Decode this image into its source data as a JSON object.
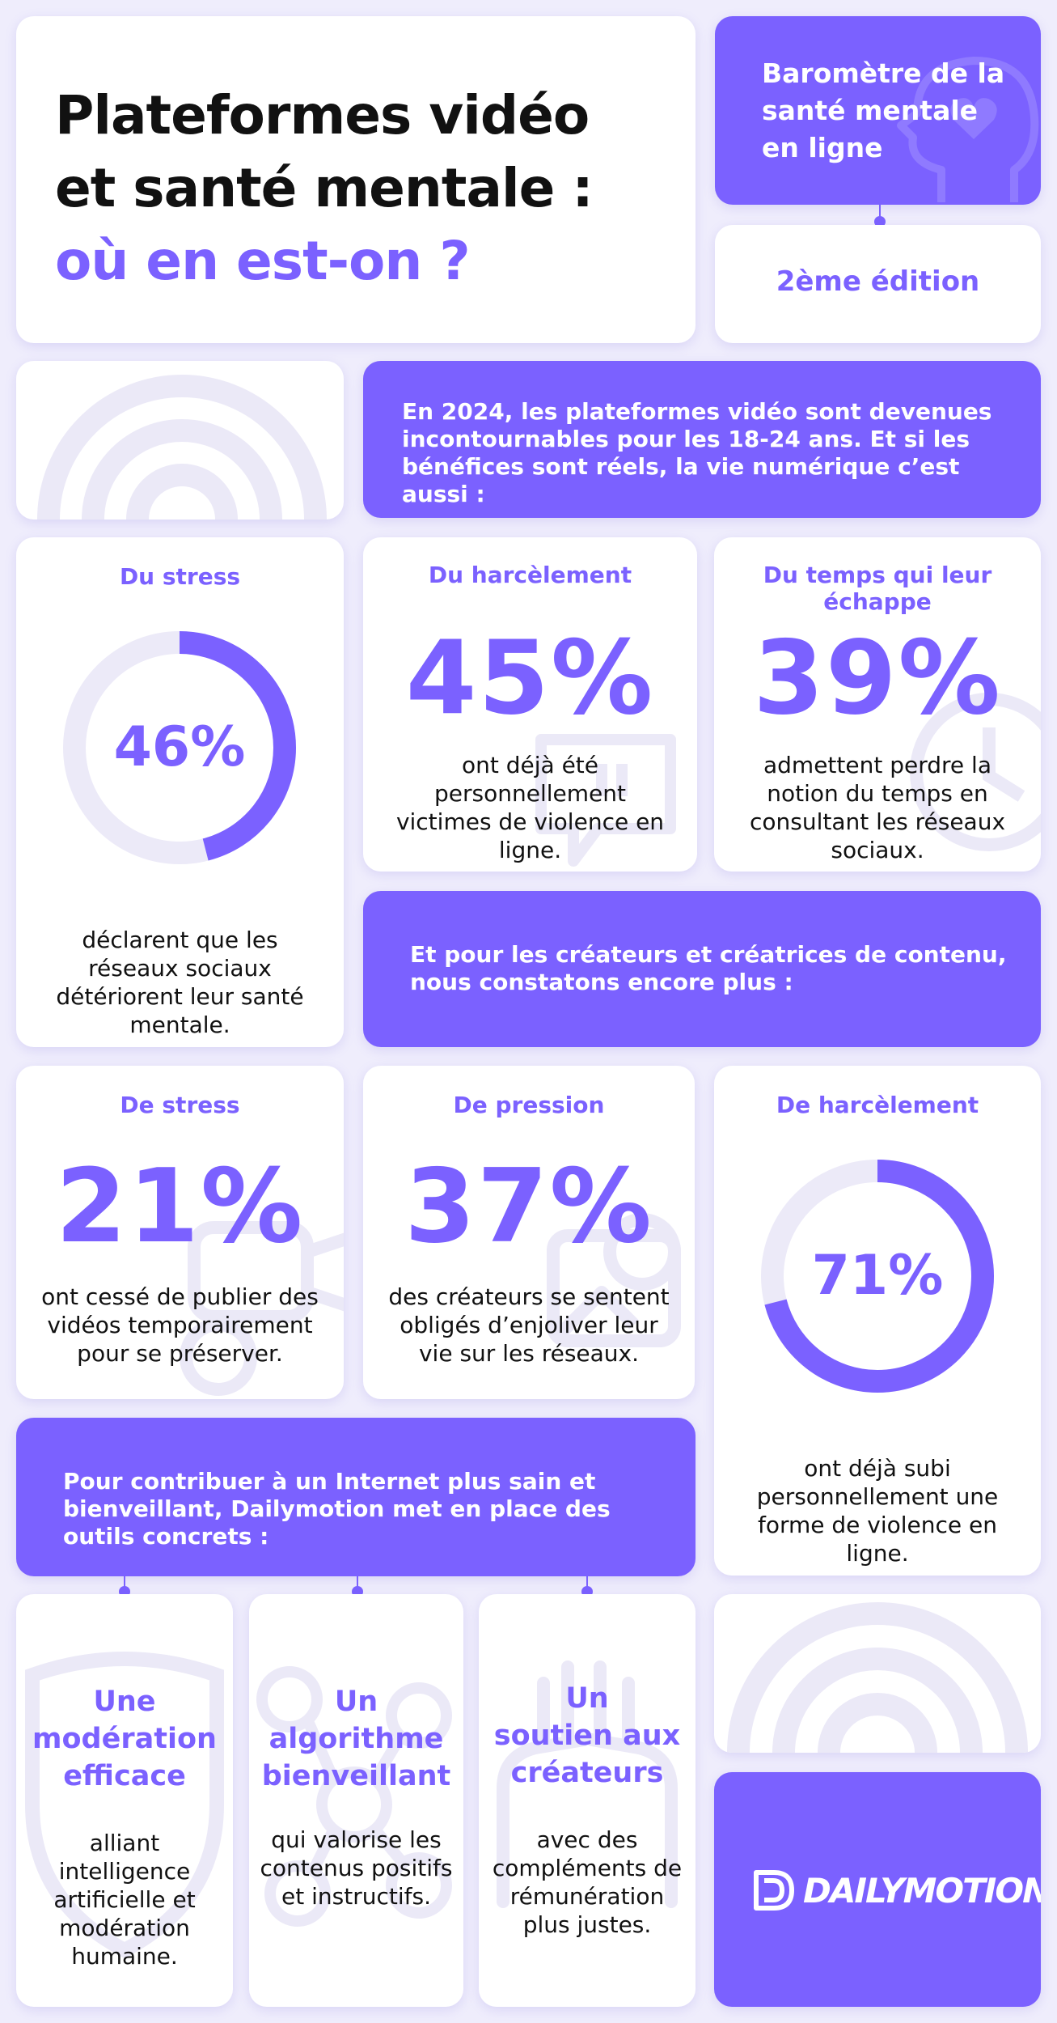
{
  "colors": {
    "accent": "#7b61ff",
    "background": "#efedfc",
    "card": "#ffffff",
    "ring_track": "#eceaf8",
    "deco": "#ebe9f7"
  },
  "header": {
    "title_line1": "Plateformes vidéo",
    "title_line2": "et santé mentale :",
    "title_line3": "où en est-on ?"
  },
  "barometer": {
    "line1": "Baromètre de la",
    "line2": "santé mentale",
    "line3": "en ligne",
    "icon": "head-heart-icon"
  },
  "edition": "2ème édition",
  "intro": "En 2024, les plateformes vidéo sont devenues incontournables pour les 18-24 ans. Et si les bénéfices sont réels, la vie numérique c’est aussi :",
  "stats_youth": [
    {
      "label": "Du stress",
      "value": "46%",
      "percent": 46,
      "text": "déclarent que les réseaux sociaux détériorent leur santé mentale."
    },
    {
      "label": "Du harcèlement",
      "value": "45%",
      "text": "ont déjà été personnellement victimes de violence en ligne.",
      "icon": "chat-bubble-icon"
    },
    {
      "label": "Du temps qui leur échappe",
      "value": "39%",
      "text": "admettent perdre la notion du temps en consultant les réseaux sociaux.",
      "icon": "clock-icon"
    }
  ],
  "creators_intro": "Et pour les créateurs et créatrices de contenu, nous constatons encore plus :",
  "stats_creators": [
    {
      "label": "De stress",
      "value": "21%",
      "text": "ont cessé de publier des vidéos temporairement pour se préserver.",
      "icon": "camera-icon"
    },
    {
      "label": "De pression",
      "value": "37%",
      "text": "des créateurs se sentent obligés d’enjoliver leur vie sur les réseaux.",
      "icon": "photo-icon"
    },
    {
      "label": "De harcèlement",
      "value": "71%",
      "percent": 71,
      "text": "ont déjà subi personnellement une forme de violence en ligne."
    }
  ],
  "dailymotion_intro": "Pour contribuer à un Internet plus sain et bienveillant, Dailymotion met en place des outils concrets :",
  "solutions": [
    {
      "title_l1": "Une",
      "title_l2": "modération",
      "title_l3": "efficace",
      "text": "alliant intelligence artificielle et modération humaine.",
      "icon": "shield-icon"
    },
    {
      "title_l1": "Un",
      "title_l2": "algorithme",
      "title_l3": "bienveillant",
      "text": "qui valorise les contenus positifs et instructifs.",
      "icon": "network-icon"
    },
    {
      "title_l1": "Un",
      "title_l2": "soutien aux",
      "title_l3": "créateurs",
      "text": "avec des compléments de rémunération plus justes.",
      "icon": "hands-icon"
    }
  ],
  "brand": {
    "name": "DAILYMOTION",
    "icon": "dailymotion-logo-icon"
  }
}
